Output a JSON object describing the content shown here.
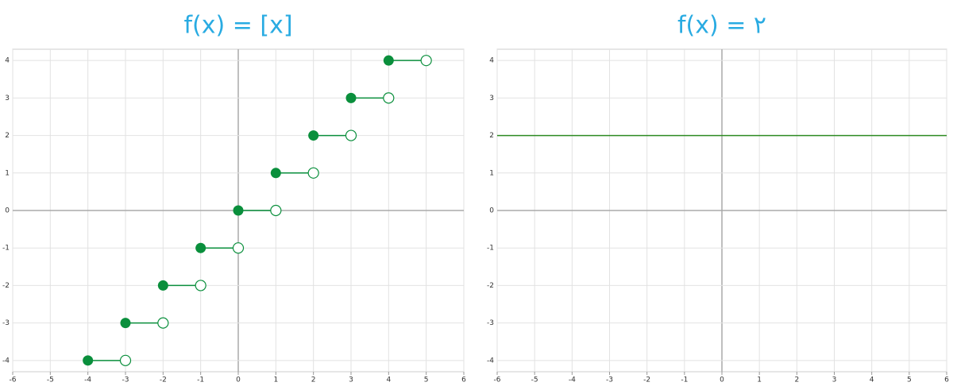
{
  "chart_data": [
    {
      "type": "step",
      "title": "f(x) = [x]",
      "color": "#0a8f3c",
      "x": [
        -4,
        -3,
        -2,
        -1,
        0,
        1,
        2,
        3,
        4
      ],
      "x_end": [
        -3,
        -2,
        -1,
        0,
        1,
        2,
        3,
        4,
        5
      ],
      "values": [
        -4,
        -3,
        -2,
        -1,
        0,
        1,
        2,
        3,
        4
      ],
      "xlim": [
        -6,
        6
      ],
      "ylim": [
        -4.3,
        4.3
      ],
      "xticks": [
        -6,
        -5,
        -4,
        -3,
        -2,
        -1,
        0,
        1,
        2,
        3,
        4,
        5,
        6
      ],
      "yticks": [
        -4,
        -3,
        -2,
        -1,
        0,
        1,
        2,
        3,
        4
      ],
      "grid": true
    },
    {
      "type": "line",
      "title": "f(x) = ۲",
      "color": "#2e8b22",
      "x": [
        -6,
        6
      ],
      "values": [
        2,
        2
      ],
      "xlim": [
        -6,
        6
      ],
      "ylim": [
        -4.3,
        4.3
      ],
      "xticks": [
        -6,
        -5,
        -4,
        -3,
        -2,
        -1,
        0,
        1,
        2,
        3,
        4,
        5,
        6
      ],
      "yticks": [
        -4,
        -3,
        -2,
        -1,
        0,
        1,
        2,
        3,
        4
      ],
      "grid": true
    }
  ]
}
